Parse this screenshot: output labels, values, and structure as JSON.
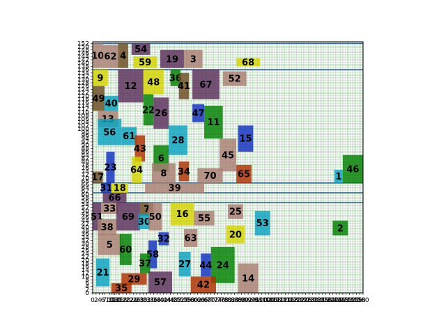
{
  "colors": {
    "grid": "#4c9c4c",
    "grid_bg": "#ffffff",
    "separator": "#3c6a9a",
    "frame": "#000000"
  },
  "chart_data": {
    "type": "block-diagram",
    "xlim": [
      0,
      160
    ],
    "ylim": [
      0,
      153
    ],
    "x_ticks": [
      0,
      2,
      4,
      6,
      7,
      10,
      11,
      12,
      13,
      14,
      15,
      16,
      18,
      20,
      22,
      24,
      26,
      28,
      30,
      32,
      34,
      36,
      38,
      40,
      42,
      44,
      46,
      48,
      50,
      52,
      54,
      56,
      58,
      60,
      62,
      64,
      66,
      68,
      70,
      72,
      74,
      76,
      78,
      80,
      82,
      84,
      86,
      88,
      90,
      92,
      94,
      96,
      98,
      100,
      102,
      104,
      106,
      108,
      110,
      112,
      114,
      116,
      118,
      120,
      122,
      124,
      126,
      128,
      130,
      132,
      134,
      136,
      138,
      140,
      142,
      144,
      146,
      148,
      150,
      152,
      154,
      156,
      158,
      160
    ],
    "y_ticks": [
      0,
      2,
      4,
      6,
      8,
      10,
      12,
      14,
      16,
      18,
      20,
      22,
      24,
      26,
      28,
      30,
      32,
      34,
      36,
      38,
      40,
      42,
      44,
      46,
      48,
      50,
      52,
      54,
      56,
      58,
      60,
      62,
      64,
      66,
      68,
      70,
      72,
      74,
      76,
      78,
      80,
      82,
      84,
      86,
      88,
      90,
      92,
      94,
      96,
      98,
      100,
      102,
      104,
      106,
      108,
      110,
      112,
      114,
      116,
      118,
      120,
      122,
      124,
      126,
      128,
      130,
      132,
      134,
      136,
      138,
      140,
      142,
      144,
      146,
      148,
      150,
      152
    ],
    "separators_y": [
      136,
      67,
      61,
      55,
      152
    ],
    "blocks": [
      {
        "label": "10",
        "x": 0,
        "y": 137,
        "w": 6,
        "h": 15,
        "color": "#aa7f73"
      },
      {
        "label": "62",
        "x": 6,
        "y": 137,
        "w": 9,
        "h": 14,
        "color": "#aa7f73"
      },
      {
        "label": "4",
        "x": 15,
        "y": 137,
        "w": 6,
        "h": 15,
        "color": "#6b4c20"
      },
      {
        "label": "54",
        "x": 23,
        "y": 145,
        "w": 11,
        "h": 7,
        "color": "#5a2e5a"
      },
      {
        "label": "59",
        "x": 24,
        "y": 137,
        "w": 14,
        "h": 7,
        "color": "#d4d400"
      },
      {
        "label": "19",
        "x": 40,
        "y": 137,
        "w": 14,
        "h": 11,
        "color": "#5a2e5a"
      },
      {
        "label": "3",
        "x": 54,
        "y": 137,
        "w": 11,
        "h": 11,
        "color": "#aa7f73"
      },
      {
        "label": "68",
        "x": 85,
        "y": 138,
        "w": 14,
        "h": 5,
        "color": "#d4d400"
      },
      {
        "label": "9",
        "x": 0,
        "y": 126,
        "w": 9,
        "h": 10,
        "color": "#d4d400"
      },
      {
        "label": "12",
        "x": 15,
        "y": 116,
        "w": 15,
        "h": 20,
        "color": "#5a2e5a"
      },
      {
        "label": "48",
        "x": 30,
        "y": 121,
        "w": 12,
        "h": 15,
        "color": "#d4d400"
      },
      {
        "label": "36",
        "x": 46,
        "y": 126,
        "w": 6,
        "h": 10,
        "color": "#008000"
      },
      {
        "label": "41",
        "x": 51,
        "y": 118,
        "w": 6,
        "h": 16,
        "color": "#6b4c20"
      },
      {
        "label": "67",
        "x": 59,
        "y": 118,
        "w": 16,
        "h": 18,
        "color": "#5a2e5a"
      },
      {
        "label": "52",
        "x": 77,
        "y": 126,
        "w": 14,
        "h": 9,
        "color": "#aa7f73"
      },
      {
        "label": "49",
        "x": 0,
        "y": 111,
        "w": 7,
        "h": 15,
        "color": "#6b4c20"
      },
      {
        "label": "40",
        "x": 7,
        "y": 111,
        "w": 8,
        "h": 9,
        "color": "#0aa2c0"
      },
      {
        "label": "22",
        "x": 30,
        "y": 102,
        "w": 6,
        "h": 19,
        "color": "#008000"
      },
      {
        "label": "26",
        "x": 36,
        "y": 100,
        "w": 9,
        "h": 19,
        "color": "#5a2e5a"
      },
      {
        "label": "47",
        "x": 59,
        "y": 104,
        "w": 7,
        "h": 11,
        "color": "#1030c0"
      },
      {
        "label": "13",
        "x": 3,
        "y": 101,
        "w": 12,
        "h": 10,
        "color": "#aa7f73"
      },
      {
        "label": "11",
        "x": 66,
        "y": 94,
        "w": 11,
        "h": 20,
        "color": "#008000"
      },
      {
        "label": "56",
        "x": 3,
        "y": 90,
        "w": 14,
        "h": 16,
        "color": "#0aa2c0"
      },
      {
        "label": "61",
        "x": 17,
        "y": 90,
        "w": 9,
        "h": 11,
        "color": "#0aa2c0"
      },
      {
        "label": "15",
        "x": 86,
        "y": 86,
        "w": 9,
        "h": 16,
        "color": "#1030c0"
      },
      {
        "label": "43",
        "x": 25,
        "y": 80,
        "w": 6,
        "h": 16,
        "color": "#b03000"
      },
      {
        "label": "28",
        "x": 45,
        "y": 84,
        "w": 11,
        "h": 18,
        "color": "#0aa2c0"
      },
      {
        "label": "6",
        "x": 36,
        "y": 74,
        "w": 9,
        "h": 16,
        "color": "#008000"
      },
      {
        "label": "45",
        "x": 75,
        "y": 74,
        "w": 10,
        "h": 20,
        "color": "#aa7f73"
      },
      {
        "label": "34",
        "x": 51,
        "y": 68,
        "w": 6,
        "h": 12,
        "color": "#b03000"
      },
      {
        "label": "46",
        "x": 148,
        "y": 67,
        "w": 12,
        "h": 17,
        "color": "#008000"
      },
      {
        "label": "23",
        "x": 8,
        "y": 67,
        "w": 5,
        "h": 19,
        "color": "#1030c0"
      },
      {
        "label": "64",
        "x": 23,
        "y": 67,
        "w": 6,
        "h": 16,
        "color": "#d4d400"
      },
      {
        "label": "8",
        "x": 35,
        "y": 67,
        "w": 14,
        "h": 12,
        "color": "#aa7f73"
      },
      {
        "label": "70",
        "x": 62,
        "y": 67,
        "w": 15,
        "h": 9,
        "color": "#aa7f73"
      },
      {
        "label": "65",
        "x": 85,
        "y": 67,
        "w": 9,
        "h": 11,
        "color": "#b03000"
      },
      {
        "label": "1",
        "x": 143,
        "y": 67,
        "w": 5,
        "h": 8,
        "color": "#0aa2c0"
      },
      {
        "label": "17",
        "x": 0,
        "y": 67,
        "w": 6,
        "h": 7,
        "color": "#6b4c20"
      },
      {
        "label": "39",
        "x": 31,
        "y": 61,
        "w": 35,
        "h": 6,
        "color": "#aa7f73"
      },
      {
        "label": "31",
        "x": 5,
        "y": 61,
        "w": 6,
        "h": 6,
        "color": "#1030c0"
      },
      {
        "label": "18",
        "x": 11,
        "y": 61,
        "w": 10,
        "h": 6,
        "color": "#d4d400"
      },
      {
        "label": "66",
        "x": 6,
        "y": 55,
        "w": 14,
        "h": 6,
        "color": "#5a2e5a"
      },
      {
        "label": "33",
        "x": 5,
        "y": 48,
        "w": 10,
        "h": 7,
        "color": "#aa7f73"
      },
      {
        "label": "7",
        "x": 28,
        "y": 47,
        "w": 8,
        "h": 8,
        "color": "#6b4c20"
      },
      {
        "label": "51",
        "x": 0,
        "y": 38,
        "w": 5,
        "h": 17,
        "color": "#5a2e5a"
      },
      {
        "label": "69",
        "x": 14,
        "y": 38,
        "w": 14,
        "h": 17,
        "color": "#5a2e5a"
      },
      {
        "label": "30",
        "x": 27,
        "y": 39,
        "w": 7,
        "h": 9,
        "color": "#0aa2c0"
      },
      {
        "label": "50",
        "x": 33,
        "y": 38,
        "w": 8,
        "h": 17,
        "color": "#aa7f73"
      },
      {
        "label": "16",
        "x": 46,
        "y": 41,
        "w": 14,
        "h": 14,
        "color": "#d4d400"
      },
      {
        "label": "55",
        "x": 60,
        "y": 41,
        "w": 12,
        "h": 9,
        "color": "#aa7f73"
      },
      {
        "label": "25",
        "x": 80,
        "y": 45,
        "w": 9,
        "h": 9,
        "color": "#aa7f73"
      },
      {
        "label": "53",
        "x": 96,
        "y": 35,
        "w": 9,
        "h": 15,
        "color": "#0aa2c0"
      },
      {
        "label": "2",
        "x": 142,
        "y": 35,
        "w": 9,
        "h": 9,
        "color": "#008000"
      },
      {
        "label": "38",
        "x": 3,
        "y": 35,
        "w": 11,
        "h": 10,
        "color": "#aa7f73"
      },
      {
        "label": "20",
        "x": 79,
        "y": 30,
        "w": 11,
        "h": 11,
        "color": "#d4d400"
      },
      {
        "label": "63",
        "x": 54,
        "y": 28,
        "w": 8,
        "h": 11,
        "color": "#aa7f73"
      },
      {
        "label": "32",
        "x": 39,
        "y": 29,
        "w": 6,
        "h": 8,
        "color": "#1030c0"
      },
      {
        "label": "5",
        "x": 3,
        "y": 23,
        "w": 14,
        "h": 13,
        "color": "#aa7f73"
      },
      {
        "label": "60",
        "x": 16,
        "y": 17,
        "w": 7,
        "h": 19,
        "color": "#008000"
      },
      {
        "label": "58",
        "x": 33,
        "y": 15,
        "w": 5,
        "h": 17,
        "color": "#1030c0"
      },
      {
        "label": "37",
        "x": 28,
        "y": 12,
        "w": 6,
        "h": 12,
        "color": "#008000"
      },
      {
        "label": "24",
        "x": 70,
        "y": 6,
        "w": 14,
        "h": 22,
        "color": "#008000"
      },
      {
        "label": "44",
        "x": 64,
        "y": 10,
        "w": 6,
        "h": 14,
        "color": "#1030c0"
      },
      {
        "label": "27",
        "x": 51,
        "y": 10,
        "w": 7,
        "h": 15,
        "color": "#0aa2c0"
      },
      {
        "label": "21",
        "x": 2,
        "y": 4,
        "w": 8,
        "h": 17,
        "color": "#0aa2c0"
      },
      {
        "label": "29",
        "x": 17,
        "y": 5,
        "w": 15,
        "h": 7,
        "color": "#b03000"
      },
      {
        "label": "57",
        "x": 33,
        "y": 0,
        "w": 14,
        "h": 13,
        "color": "#5a2e5a"
      },
      {
        "label": "14",
        "x": 86,
        "y": 0,
        "w": 12,
        "h": 18,
        "color": "#aa7f73"
      },
      {
        "label": "42",
        "x": 58,
        "y": 0,
        "w": 15,
        "h": 10,
        "color": "#b03000"
      },
      {
        "label": "35",
        "x": 11,
        "y": 0,
        "w": 12,
        "h": 6,
        "color": "#b03000"
      }
    ]
  }
}
